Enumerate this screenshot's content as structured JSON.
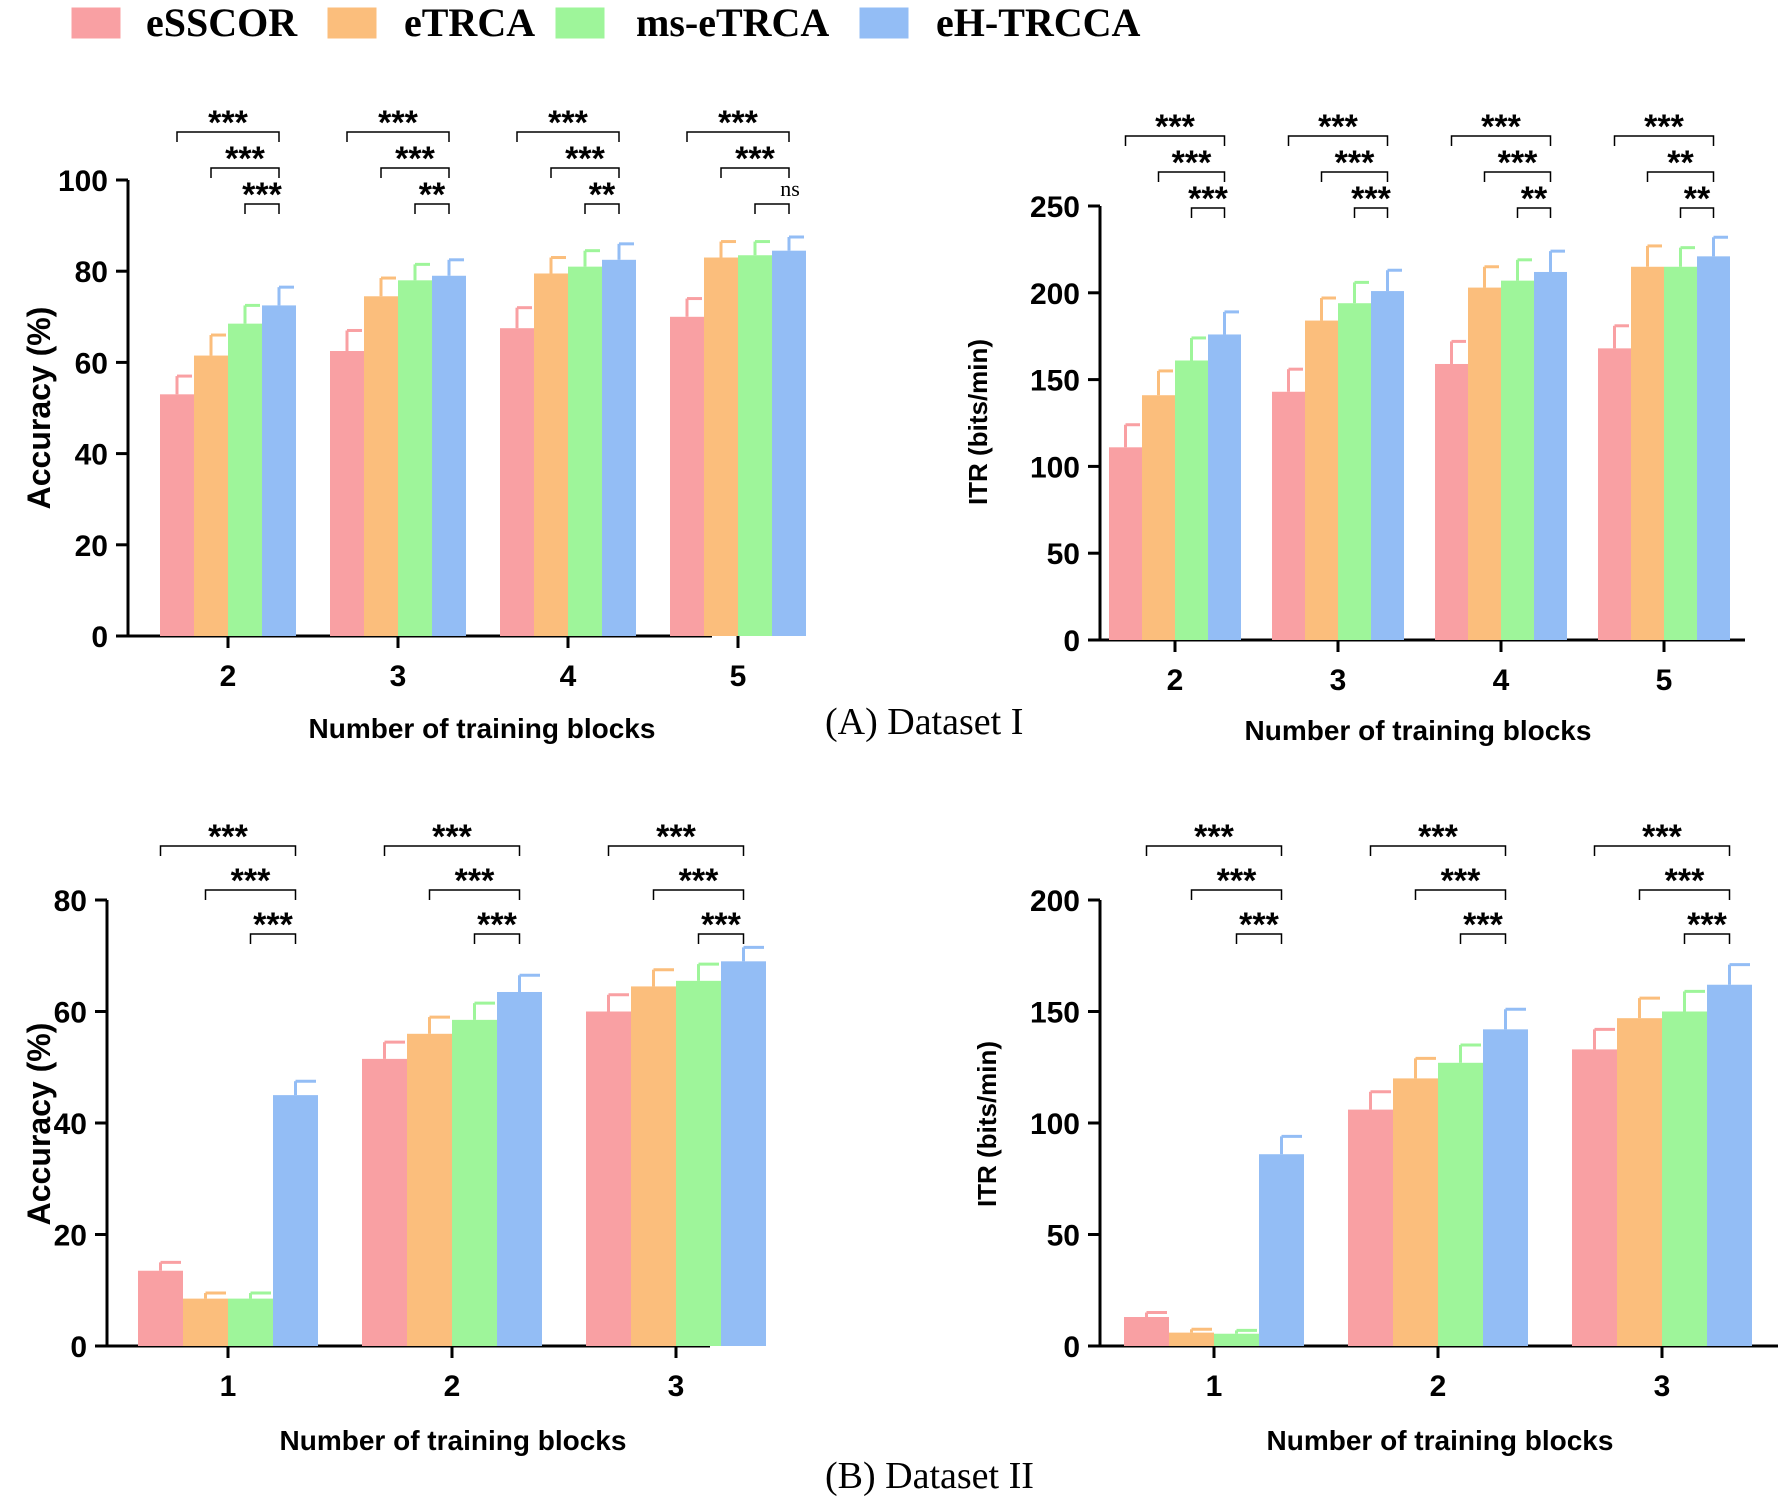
{
  "colors": {
    "eSSCOR": "#f9a0a3",
    "eTRCA": "#fbbe7c",
    "ms-eTRCA": "#9ef59a",
    "eH-TRCCA": "#93bdf5",
    "axis": "#000000"
  },
  "legend": {
    "items": [
      "eSSCOR",
      "eTRCA",
      "ms-eTRCA",
      "eH-TRCCA"
    ]
  },
  "captions": {
    "a": "(A) Dataset I",
    "b": "(B) Dataset II"
  },
  "chart_data": [
    {
      "id": "a-acc",
      "type": "bar",
      "xlabel": "Number of training blocks",
      "ylabel": "Accuracy (%)",
      "ylim": [
        0,
        100
      ],
      "yticks": [
        0,
        20,
        40,
        60,
        80,
        100
      ],
      "categories": [
        "2",
        "3",
        "4",
        "5"
      ],
      "series": [
        {
          "name": "eSSCOR",
          "values": [
            53,
            62.5,
            67.5,
            70
          ],
          "errors": [
            4,
            4.5,
            4.5,
            4
          ]
        },
        {
          "name": "eTRCA",
          "values": [
            61.5,
            74.5,
            79.5,
            83
          ],
          "errors": [
            4.5,
            4,
            3.5,
            3.5
          ]
        },
        {
          "name": "ms-eTRCA",
          "values": [
            68.5,
            78,
            81,
            83.5
          ],
          "errors": [
            4,
            3.5,
            3.5,
            3
          ]
        },
        {
          "name": "eH-TRCCA",
          "values": [
            72.5,
            79,
            82.5,
            84.5
          ],
          "errors": [
            4,
            3.5,
            3.5,
            3
          ]
        }
      ],
      "significance": [
        [
          "***",
          "***",
          "***"
        ],
        [
          "***",
          "***",
          "**"
        ],
        [
          "***",
          "***",
          "**"
        ],
        [
          "***",
          "***",
          "ns"
        ]
      ]
    },
    {
      "id": "a-itr",
      "type": "bar",
      "xlabel": "Number of training blocks",
      "ylabel": "ITR (bits/min)",
      "ylim": [
        0,
        250
      ],
      "yticks": [
        0,
        50,
        100,
        150,
        200,
        250
      ],
      "categories": [
        "2",
        "3",
        "4",
        "5"
      ],
      "series": [
        {
          "name": "eSSCOR",
          "values": [
            111,
            143,
            159,
            168
          ],
          "errors": [
            13,
            13,
            13,
            13
          ]
        },
        {
          "name": "eTRCA",
          "values": [
            141,
            184,
            203,
            215
          ],
          "errors": [
            14,
            13,
            12,
            12
          ]
        },
        {
          "name": "ms-eTRCA",
          "values": [
            161,
            194,
            207,
            215
          ],
          "errors": [
            13,
            12,
            12,
            11
          ]
        },
        {
          "name": "eH-TRCCA",
          "values": [
            176,
            201,
            212,
            221
          ],
          "errors": [
            13,
            12,
            12,
            11
          ]
        }
      ],
      "significance": [
        [
          "***",
          "***",
          "***"
        ],
        [
          "***",
          "***",
          "***"
        ],
        [
          "***",
          "***",
          "**"
        ],
        [
          "***",
          "**",
          "**"
        ]
      ]
    },
    {
      "id": "b-acc",
      "type": "bar",
      "xlabel": "Number of training blocks",
      "ylabel": "Accuracy (%)",
      "ylim": [
        0,
        80
      ],
      "yticks": [
        0,
        20,
        40,
        60,
        80
      ],
      "categories": [
        "1",
        "2",
        "3"
      ],
      "series": [
        {
          "name": "eSSCOR",
          "values": [
            13.5,
            51.5,
            60
          ],
          "errors": [
            1.5,
            3,
            3
          ]
        },
        {
          "name": "eTRCA",
          "values": [
            8.5,
            56,
            64.5
          ],
          "errors": [
            1,
            3,
            3
          ]
        },
        {
          "name": "ms-eTRCA",
          "values": [
            8.5,
            58.5,
            65.5
          ],
          "errors": [
            1,
            3,
            3
          ]
        },
        {
          "name": "eH-TRCCA",
          "values": [
            45,
            63.5,
            69
          ],
          "errors": [
            2.5,
            3,
            2.5
          ]
        }
      ],
      "significance": [
        [
          "***",
          "***",
          "***"
        ],
        [
          "***",
          "***",
          "***"
        ],
        [
          "***",
          "***",
          "***"
        ]
      ]
    },
    {
      "id": "b-itr",
      "type": "bar",
      "xlabel": "Number of training blocks",
      "ylabel": "ITR (bits/min)",
      "ylim": [
        0,
        200
      ],
      "yticks": [
        0,
        50,
        100,
        150,
        200
      ],
      "categories": [
        "1",
        "2",
        "3"
      ],
      "series": [
        {
          "name": "eSSCOR",
          "values": [
            13,
            106,
            133
          ],
          "errors": [
            2,
            8,
            9
          ]
        },
        {
          "name": "eTRCA",
          "values": [
            6,
            120,
            147
          ],
          "errors": [
            1.5,
            9,
            9
          ]
        },
        {
          "name": "ms-eTRCA",
          "values": [
            5.5,
            127,
            150
          ],
          "errors": [
            1.5,
            8,
            9
          ]
        },
        {
          "name": "eH-TRCCA",
          "values": [
            86,
            142,
            162
          ],
          "errors": [
            8,
            9,
            9
          ]
        }
      ],
      "significance": [
        [
          "***",
          "***",
          "***"
        ],
        [
          "***",
          "***",
          "***"
        ],
        [
          "***",
          "***",
          "***"
        ]
      ]
    }
  ]
}
